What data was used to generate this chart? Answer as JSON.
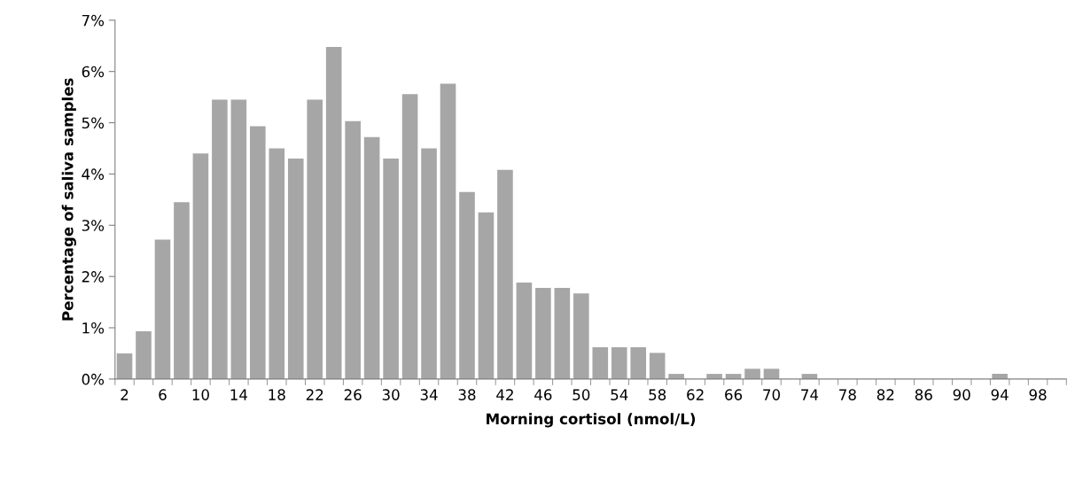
{
  "chart_data": {
    "type": "bar",
    "xlabel": "Morning cortisol (nmol/L)",
    "ylabel": "Percentage of saliva samples",
    "categories": [
      "2",
      null,
      "6",
      null,
      "10",
      null,
      "14",
      null,
      "18",
      null,
      "22",
      null,
      "26",
      null,
      "30",
      null,
      "34",
      null,
      "38",
      null,
      "42",
      null,
      "46",
      null,
      "50",
      null,
      "54",
      null,
      "58",
      null,
      "62",
      null,
      "66",
      null,
      "70",
      null,
      "74",
      null,
      "78",
      null,
      "82",
      null,
      "86",
      null,
      "90",
      null,
      "94",
      null,
      "98",
      null
    ],
    "values": [
      0.5,
      0.93,
      2.72,
      3.45,
      4.4,
      5.45,
      5.45,
      4.93,
      4.5,
      4.3,
      5.45,
      6.48,
      5.03,
      4.72,
      4.3,
      5.56,
      4.5,
      5.76,
      3.65,
      3.25,
      4.08,
      1.88,
      1.78,
      1.78,
      1.67,
      0.62,
      0.62,
      0.62,
      0.51,
      0.1,
      0,
      0.1,
      0.1,
      0.2,
      0.2,
      0,
      0.1,
      0,
      0,
      0,
      0,
      0,
      0,
      0,
      0,
      0,
      0.1,
      0,
      0,
      0
    ],
    "color": "#a6a6a6",
    "ylim": [
      0,
      7
    ],
    "yticks": [
      {
        "value": 0,
        "label": "0%"
      },
      {
        "value": 1,
        "label": "1%"
      },
      {
        "value": 2,
        "label": "2%"
      },
      {
        "value": 3,
        "label": "3%"
      },
      {
        "value": 4,
        "label": "4%"
      },
      {
        "value": 5,
        "label": "5%"
      },
      {
        "value": 6,
        "label": "6%"
      },
      {
        "value": 7,
        "label": "7%"
      }
    ],
    "grid": false,
    "legend": false
  }
}
